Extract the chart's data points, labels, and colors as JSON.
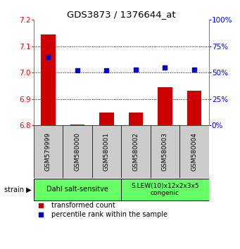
{
  "title": "GDS3873 / 1376644_at",
  "samples": [
    "GSM579999",
    "GSM580000",
    "GSM580001",
    "GSM580002",
    "GSM580003",
    "GSM580004"
  ],
  "transformed_counts": [
    7.145,
    6.803,
    6.848,
    6.848,
    6.945,
    6.93
  ],
  "percentile_ranks": [
    65,
    52,
    52,
    53,
    55,
    53
  ],
  "ylim_left": [
    6.8,
    7.2
  ],
  "ylim_right": [
    0,
    100
  ],
  "yticks_left": [
    6.8,
    6.9,
    7.0,
    7.1,
    7.2
  ],
  "yticks_right": [
    0,
    25,
    50,
    75,
    100
  ],
  "bar_color": "#cc0000",
  "dot_color": "#0000cc",
  "bar_base": 6.8,
  "group1_label": "Dahl salt-sensitve",
  "group2_label": "S.LEW(10)x12x2x3x5\ncongenic",
  "group_bg_color": "#66ff66",
  "sample_bg_color": "#cccccc",
  "legend_bar_label": "transformed count",
  "legend_dot_label": "percentile rank within the sample",
  "strain_label": "strain"
}
